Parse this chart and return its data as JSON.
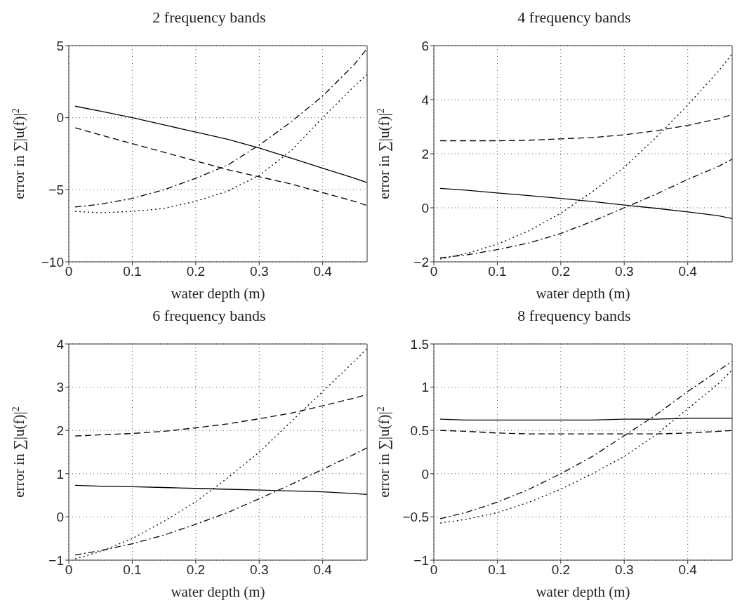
{
  "chart_data": [
    {
      "type": "line",
      "title": "2 frequency bands",
      "xlabel": "water depth (m)",
      "ylabel": "error in ∑|u(f)|$^{2}$",
      "x": [
        0.01,
        0.05,
        0.1,
        0.15,
        0.2,
        0.25,
        0.3,
        0.35,
        0.4,
        0.45,
        0.47
      ],
      "xlim": [
        0,
        0.47
      ],
      "xticks": [
        0,
        0.1,
        0.2,
        0.3,
        0.4
      ],
      "ylim": [
        -10,
        5
      ],
      "yticks": [
        -10,
        -5,
        0,
        5
      ],
      "grid": true,
      "marker": "none",
      "series": [
        {
          "color": "#000000",
          "line_style": "solid",
          "values": [
            0.8,
            0.45,
            0,
            -0.5,
            -1.0,
            -1.5,
            -2.1,
            -2.8,
            -3.5,
            -4.2,
            -4.5
          ]
        },
        {
          "color": "#000000",
          "line_style": "dashed",
          "values": [
            -0.7,
            -1.2,
            -1.8,
            -2.4,
            -3.0,
            -3.6,
            -4.1,
            -4.6,
            -5.2,
            -5.8,
            -6.1
          ]
        },
        {
          "color": "#000000",
          "line_style": "dashdot",
          "values": [
            -6.2,
            -6.0,
            -5.6,
            -5.0,
            -4.2,
            -3.3,
            -1.9,
            -0.3,
            1.5,
            3.7,
            4.8
          ]
        },
        {
          "color": "#000000",
          "line_style": "dotted",
          "values": [
            -6.5,
            -6.6,
            -6.5,
            -6.3,
            -5.8,
            -5.1,
            -4.0,
            -2.3,
            0,
            2.2,
            3.0
          ]
        }
      ]
    },
    {
      "type": "line",
      "title": "4 frequency bands",
      "xlabel": "water depth (m)",
      "ylabel": "error in ∑|u(f)|$^{2}$",
      "x": [
        0.01,
        0.05,
        0.1,
        0.15,
        0.2,
        0.25,
        0.3,
        0.35,
        0.4,
        0.45,
        0.47
      ],
      "xlim": [
        0,
        0.47
      ],
      "xticks": [
        0,
        0.1,
        0.2,
        0.3,
        0.4
      ],
      "ylim": [
        -2,
        6
      ],
      "yticks": [
        -2,
        0,
        2,
        4,
        6
      ],
      "grid": true,
      "marker": "none",
      "series": [
        {
          "color": "#000000",
          "line_style": "solid",
          "values": [
            0.72,
            0.65,
            0.55,
            0.45,
            0.35,
            0.23,
            0.1,
            -0.02,
            -0.15,
            -0.3,
            -0.4
          ]
        },
        {
          "color": "#000000",
          "line_style": "dashed",
          "values": [
            2.48,
            2.48,
            2.48,
            2.5,
            2.55,
            2.6,
            2.7,
            2.85,
            3.05,
            3.3,
            3.45
          ]
        },
        {
          "color": "#000000",
          "line_style": "dashdot",
          "values": [
            -1.85,
            -1.75,
            -1.55,
            -1.3,
            -0.95,
            -0.5,
            0,
            0.5,
            1.05,
            1.55,
            1.8
          ]
        },
        {
          "color": "#000000",
          "line_style": "dotted",
          "values": [
            -1.9,
            -1.7,
            -1.35,
            -0.85,
            -0.2,
            0.6,
            1.5,
            2.6,
            3.8,
            5.1,
            5.7
          ]
        }
      ]
    },
    {
      "type": "line",
      "title": "6 frequency bands",
      "xlabel": "water depth (m)",
      "ylabel": "error in ∑|u(f)|$^{2}$",
      "x": [
        0.01,
        0.05,
        0.1,
        0.15,
        0.2,
        0.25,
        0.3,
        0.35,
        0.4,
        0.45,
        0.47
      ],
      "xlim": [
        0,
        0.47
      ],
      "xticks": [
        0,
        0.1,
        0.2,
        0.3,
        0.4
      ],
      "ylim": [
        -1,
        4
      ],
      "yticks": [
        -1,
        0,
        1,
        2,
        3,
        4
      ],
      "grid": true,
      "marker": "none",
      "series": [
        {
          "color": "#000000",
          "line_style": "solid",
          "values": [
            0.73,
            0.71,
            0.7,
            0.68,
            0.66,
            0.64,
            0.62,
            0.6,
            0.58,
            0.54,
            0.52
          ]
        },
        {
          "color": "#000000",
          "line_style": "dashed",
          "values": [
            1.87,
            1.9,
            1.93,
            1.98,
            2.06,
            2.15,
            2.27,
            2.4,
            2.57,
            2.75,
            2.83
          ]
        },
        {
          "color": "#000000",
          "line_style": "dashdot",
          "values": [
            -0.88,
            -0.78,
            -0.62,
            -0.42,
            -0.17,
            0.1,
            0.42,
            0.75,
            1.1,
            1.45,
            1.6
          ]
        },
        {
          "color": "#000000",
          "line_style": "dotted",
          "values": [
            -0.97,
            -0.8,
            -0.5,
            -0.1,
            0.35,
            0.9,
            1.5,
            2.2,
            2.9,
            3.6,
            3.9
          ]
        }
      ]
    },
    {
      "type": "line",
      "title": "8 frequency bands",
      "xlabel": "water depth (m)",
      "ylabel": "error in ∑|u(f)|$^{2}$",
      "x": [
        0.01,
        0.05,
        0.1,
        0.15,
        0.2,
        0.25,
        0.3,
        0.35,
        0.4,
        0.45,
        0.47
      ],
      "xlim": [
        0,
        0.47
      ],
      "xticks": [
        0,
        0.1,
        0.2,
        0.3,
        0.4
      ],
      "ylim": [
        -1,
        1.5
      ],
      "yticks": [
        -1,
        -0.5,
        0,
        0.5,
        1,
        1.5
      ],
      "grid": true,
      "marker": "none",
      "series": [
        {
          "color": "#000000",
          "line_style": "solid",
          "values": [
            0.63,
            0.62,
            0.62,
            0.62,
            0.62,
            0.62,
            0.63,
            0.63,
            0.64,
            0.64,
            0.64
          ]
        },
        {
          "color": "#000000",
          "line_style": "dashed",
          "values": [
            0.5,
            0.49,
            0.47,
            0.46,
            0.46,
            0.46,
            0.46,
            0.46,
            0.47,
            0.49,
            0.5
          ]
        },
        {
          "color": "#000000",
          "line_style": "dashdot",
          "values": [
            -0.52,
            -0.45,
            -0.33,
            -0.18,
            0,
            0.2,
            0.44,
            0.68,
            0.95,
            1.2,
            1.3
          ]
        },
        {
          "color": "#000000",
          "line_style": "dotted",
          "values": [
            -0.57,
            -0.53,
            -0.45,
            -0.33,
            -0.18,
            0,
            0.2,
            0.45,
            0.75,
            1.05,
            1.2
          ]
        }
      ]
    }
  ]
}
